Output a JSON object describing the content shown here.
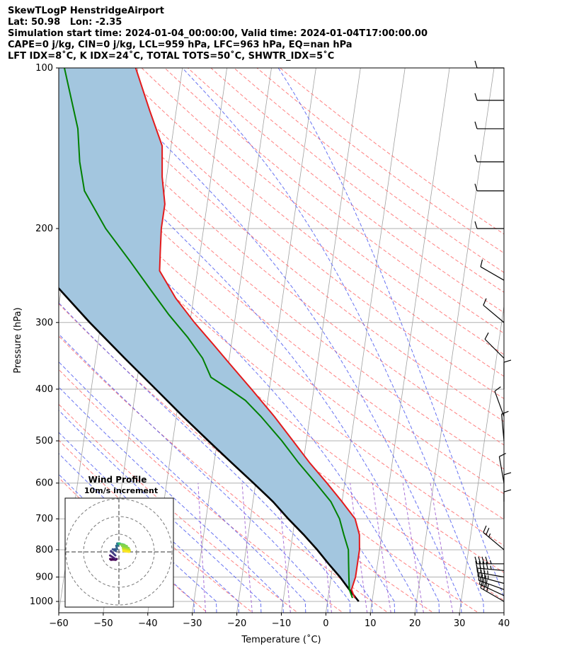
{
  "header": {
    "line1": "SkewTLogP HenstridgeAirport",
    "line2": "Lat: 50.98   Lon: -2.35",
    "line3": "Simulation start time: 2024-01-04_00:00:00, Valid time: 2024-01-04T17:00:00.00",
    "line4": "CAPE=0 j/kg, CIN=0 j/kg, LCL=959 hPa, LFC=963 hPa, EQ=nan hPa",
    "line5": "LFT IDX=8˚C, K IDX=24˚C, TOTAL TOTS=50˚C, SHWTR_IDX=5˚C"
  },
  "colors": {
    "temperature": "#e31a1c",
    "dewpoint": "#008000",
    "parcel": "#000000",
    "shade": "#a3c6df",
    "dry_adiabat": "#ff6060",
    "moist_adiabat": "#4e5af0",
    "mixing_ratio": "#9b59d0",
    "isotherm": "#a0a0a0",
    "grid": "#b0b0b0"
  },
  "chart_data": {
    "type": "skewt",
    "xlabel": "Temperature (˚C)",
    "ylabel": "Pressure (hPa)",
    "xlim": [
      -60,
      40
    ],
    "ylim": [
      1050,
      100
    ],
    "x_ticks": [
      -60,
      -50,
      -40,
      -30,
      -20,
      -10,
      0,
      10,
      20,
      30,
      40
    ],
    "x_tick_labels": [
      "−60",
      "−50",
      "−40",
      "−30",
      "−20",
      "−10",
      "0",
      "10",
      "20",
      "30",
      "40"
    ],
    "y_ticks": [
      1000,
      900,
      800,
      700,
      600,
      500,
      400,
      300,
      200,
      100
    ],
    "y_tick_labels": [
      "1000",
      "900",
      "800",
      "700",
      "600",
      "500",
      "400",
      "300",
      "200",
      "100"
    ],
    "temperature": {
      "name": "Temperature",
      "p": [
        985,
        950,
        900,
        850,
        800,
        750,
        700,
        650,
        600,
        550,
        500,
        450,
        400,
        360,
        330,
        300,
        270,
        240,
        220,
        200,
        180,
        160,
        140,
        120,
        100
      ],
      "t": [
        6,
        5,
        5.5,
        5.5,
        5.5,
        5,
        3.5,
        0,
        -4,
        -8.5,
        -13,
        -18,
        -24,
        -29.5,
        -34,
        -39,
        -44,
        -48.5,
        -49,
        -49.5,
        -49.5,
        -51,
        -52,
        -56,
        -60.5
      ]
    },
    "dewpoint": {
      "name": "Dewpoint",
      "p": [
        985,
        950,
        900,
        850,
        800,
        750,
        700,
        650,
        600,
        550,
        500,
        450,
        420,
        400,
        380,
        350,
        320,
        290,
        260,
        230,
        200,
        170,
        150,
        130,
        100
      ],
      "td": [
        5.5,
        4.5,
        4,
        3.5,
        3,
        1.5,
        0,
        -2.5,
        -6.5,
        -11,
        -15.5,
        -21,
        -25,
        -29,
        -33.5,
        -36,
        -40,
        -45,
        -50,
        -55.5,
        -62,
        -68,
        -70,
        -71.5,
        -76.5
      ]
    },
    "parcel": {
      "name": "Parcel profile",
      "p": [
        1000,
        970,
        950,
        900,
        850,
        800,
        750,
        700,
        650,
        600,
        550,
        500,
        450,
        400,
        350,
        300,
        250,
        200,
        150,
        100
      ],
      "t": [
        7,
        5.5,
        4.5,
        2,
        -1,
        -4,
        -7.5,
        -11.5,
        -15.5,
        -20.5,
        -26,
        -32,
        -38.5,
        -45.5,
        -53.5,
        -62.5,
        -72.5,
        -85,
        -99,
        -116
      ]
    },
    "wind_barbs": {
      "p": [
        1000,
        975,
        950,
        925,
        900,
        875,
        850,
        800,
        700,
        650,
        600,
        500,
        450,
        400,
        350,
        300,
        250,
        200,
        170,
        150,
        130,
        115,
        100
      ],
      "speed_kt": [
        30,
        30,
        30,
        35,
        35,
        45,
        45,
        25,
        10,
        10,
        10,
        10,
        10,
        10,
        10,
        10,
        10,
        10,
        10,
        10,
        10,
        10,
        10
      ],
      "direction_deg": [
        300,
        295,
        290,
        285,
        280,
        275,
        270,
        310,
        0,
        0,
        350,
        355,
        340,
        0,
        315,
        310,
        300,
        270,
        270,
        270,
        270,
        270,
        270
      ]
    },
    "hodograph": {
      "title": "Wind Profile",
      "subtitle": "10m/s increment",
      "ring_step_ms": 10,
      "u": [
        -3,
        -4.5,
        -5,
        -5,
        -4.5,
        -3.5,
        -2.5,
        -1.5,
        -1,
        -0.2,
        0.5,
        1.2,
        2.2,
        3.2,
        4.5,
        5.5,
        6,
        6.2,
        5.8
      ],
      "v": [
        -4,
        -4.5,
        -4,
        -2,
        0.5,
        1.5,
        1.5,
        3.5,
        4.8,
        4.6,
        4.8,
        4.4,
        4.3,
        4,
        3.3,
        2.2,
        1.3,
        0.5,
        0
      ]
    }
  }
}
